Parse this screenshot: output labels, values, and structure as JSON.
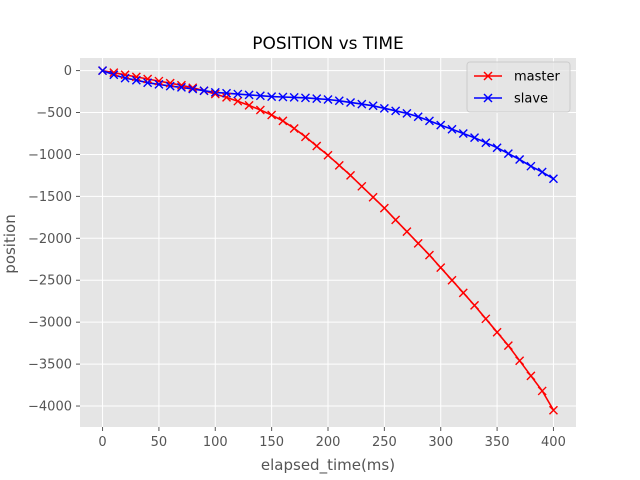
{
  "chart_data": {
    "type": "line",
    "title": "POSITION vs TIME",
    "xlabel": "elapsed_time(ms)",
    "ylabel": "position",
    "xlim": [
      -20,
      420
    ],
    "ylim": [
      -4250,
      150
    ],
    "xticks": [
      0,
      50,
      100,
      150,
      200,
      250,
      300,
      350,
      400
    ],
    "yticks": [
      0,
      -500,
      -1000,
      -1500,
      -2000,
      -2500,
      -3000,
      -3500,
      -4000
    ],
    "grid": true,
    "legend": "top-right",
    "x": [
      0,
      10,
      20,
      30,
      40,
      50,
      60,
      70,
      80,
      90,
      100,
      110,
      120,
      130,
      140,
      150,
      160,
      170,
      180,
      190,
      200,
      210,
      220,
      230,
      240,
      250,
      260,
      270,
      280,
      290,
      300,
      310,
      320,
      330,
      340,
      350,
      360,
      370,
      380,
      390,
      400
    ],
    "series": [
      {
        "name": "master",
        "color": "#ff0000",
        "marker": "x",
        "values": [
          0,
          -25,
          -50,
          -75,
          -100,
          -125,
          -150,
          -175,
          -205,
          -240,
          -280,
          -320,
          -365,
          -415,
          -470,
          -530,
          -600,
          -690,
          -790,
          -900,
          -1010,
          -1130,
          -1250,
          -1380,
          -1510,
          -1640,
          -1780,
          -1920,
          -2060,
          -2200,
          -2350,
          -2500,
          -2650,
          -2800,
          -2960,
          -3120,
          -3280,
          -3460,
          -3640,
          -3820,
          -4050
        ]
      },
      {
        "name": "slave",
        "color": "#0000ff",
        "marker": "x",
        "values": [
          0,
          -50,
          -90,
          -115,
          -145,
          -165,
          -185,
          -200,
          -220,
          -240,
          -260,
          -270,
          -280,
          -290,
          -300,
          -310,
          -315,
          -320,
          -325,
          -335,
          -345,
          -360,
          -380,
          -400,
          -420,
          -450,
          -480,
          -510,
          -550,
          -600,
          -650,
          -700,
          -750,
          -800,
          -860,
          -920,
          -990,
          -1060,
          -1140,
          -1210,
          -1290
        ]
      }
    ]
  }
}
